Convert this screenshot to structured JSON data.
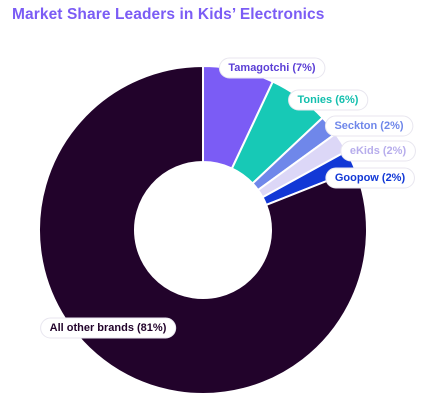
{
  "chart_data": {
    "type": "pie",
    "title": "Market Share Leaders in Kids’ Electronics",
    "donut": true,
    "slices": [
      {
        "name": "Tamagotchi",
        "value": 7,
        "label": "Tamagotchi (7%)",
        "color": "#7b5cf5",
        "text_color": "#5b3fd6"
      },
      {
        "name": "Tonies",
        "value": 6,
        "label": "Tonies (6%)",
        "color": "#17c9b6",
        "text_color": "#13bfae"
      },
      {
        "name": "Seckton",
        "value": 2,
        "label": "Seckton (2%)",
        "color": "#6f87ea",
        "text_color": "#6f87ea"
      },
      {
        "name": "eKids",
        "value": 2,
        "label": "eKids (2%)",
        "color": "#dcd7f7",
        "text_color": "#b7adec"
      },
      {
        "name": "Goopow",
        "value": 2,
        "label": "Goopow (2%)",
        "color": "#1238d6",
        "text_color": "#1238d6"
      },
      {
        "name": "All other brands",
        "value": 81,
        "label": "All other brands (81%)",
        "color": "#22032b",
        "text_color": "#22032b"
      }
    ]
  }
}
